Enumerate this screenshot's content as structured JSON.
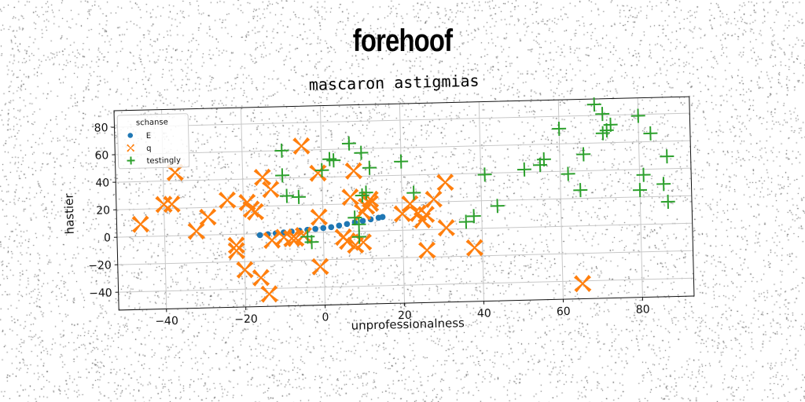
{
  "heading": "forehoof",
  "chart_data": {
    "type": "scatter",
    "title": "mascaron astigmias",
    "xlabel": "unprofessionalness",
    "ylabel": "hastier",
    "xlim": [
      -52,
      93
    ],
    "ylim": [
      -53,
      92
    ],
    "xticks": [
      -40,
      -20,
      0,
      20,
      40,
      60,
      80
    ],
    "yticks": [
      -40,
      -20,
      0,
      20,
      40,
      60,
      80
    ],
    "grid": true,
    "legend": {
      "title": "schanse",
      "placement": "top-left"
    },
    "series": [
      {
        "name": "E",
        "marker": "circle",
        "color": "#1f77b4",
        "points": [
          [
            -16,
            -1
          ],
          [
            -14,
            -0.5
          ],
          [
            -12,
            0
          ],
          [
            -10,
            0.5
          ],
          [
            -8,
            1
          ],
          [
            -6,
            1.5
          ],
          [
            -4,
            2
          ],
          [
            -2,
            2.5
          ],
          [
            0,
            3
          ],
          [
            2,
            3.5
          ],
          [
            4,
            4.5
          ],
          [
            6,
            5.5
          ],
          [
            8,
            6.5
          ],
          [
            10,
            7.5
          ],
          [
            12,
            8.5
          ],
          [
            14,
            9.5
          ],
          [
            15,
            10
          ]
        ]
      },
      {
        "name": "q",
        "marker": "x",
        "color": "#ff7f0e",
        "points": [
          [
            -46,
            9
          ],
          [
            -37,
            46
          ],
          [
            -38,
            23
          ],
          [
            -40,
            23
          ],
          [
            -32,
            3
          ],
          [
            -29,
            13
          ],
          [
            -24,
            25
          ],
          [
            -22,
            -12
          ],
          [
            -22,
            -8
          ],
          [
            -20,
            -26
          ],
          [
            -19,
            23
          ],
          [
            -18,
            18
          ],
          [
            -17,
            16
          ],
          [
            -16,
            -32
          ],
          [
            -15,
            41
          ],
          [
            -13,
            32
          ],
          [
            -14,
            -44
          ],
          [
            -13,
            -5
          ],
          [
            -10,
            -3
          ],
          [
            -8,
            -4
          ],
          [
            -7,
            -4
          ],
          [
            -5,
            63
          ],
          [
            -5,
            -2
          ],
          [
            -1,
            11
          ],
          [
            -1,
            43
          ],
          [
            -1,
            -25
          ],
          [
            5,
            -4
          ],
          [
            6,
            -7
          ],
          [
            7,
            25
          ],
          [
            8,
            44
          ],
          [
            8,
            -10
          ],
          [
            10,
            -8
          ],
          [
            10,
            14
          ],
          [
            11,
            18
          ],
          [
            12,
            20
          ],
          [
            12,
            23
          ],
          [
            20,
            12
          ],
          [
            22,
            19
          ],
          [
            24,
            12
          ],
          [
            25,
            7
          ],
          [
            26,
            11
          ],
          [
            26,
            -15
          ],
          [
            28,
            22
          ],
          [
            31,
            34
          ],
          [
            31,
            1
          ],
          [
            38,
            -14
          ],
          [
            65,
            -42
          ]
        ]
      },
      {
        "name": "testingly",
        "marker": "plus",
        "color": "#2ca02c",
        "points": [
          [
            -10,
            60
          ],
          [
            -10,
            42
          ],
          [
            -9,
            27
          ],
          [
            -6,
            26
          ],
          [
            -3,
            -7
          ],
          [
            -4,
            -3
          ],
          [
            0,
            45
          ],
          [
            2,
            53
          ],
          [
            3,
            52
          ],
          [
            7,
            64
          ],
          [
            8,
            10
          ],
          [
            9,
            -4
          ],
          [
            9,
            5
          ],
          [
            10,
            57
          ],
          [
            10,
            26
          ],
          [
            11,
            28
          ],
          [
            12,
            46
          ],
          [
            20,
            50
          ],
          [
            23,
            27
          ],
          [
            36,
            5
          ],
          [
            38,
            9
          ],
          [
            41,
            39
          ],
          [
            44,
            16
          ],
          [
            51,
            42
          ],
          [
            55,
            45
          ],
          [
            56,
            49
          ],
          [
            60,
            71
          ],
          [
            62,
            38
          ],
          [
            65,
            26
          ],
          [
            66,
            52
          ],
          [
            69,
            88
          ],
          [
            71,
            81
          ],
          [
            71,
            67
          ],
          [
            72,
            69
          ],
          [
            73,
            73
          ],
          [
            80,
            79
          ],
          [
            80,
            25
          ],
          [
            81,
            36
          ],
          [
            83,
            66
          ],
          [
            86,
            29
          ],
          [
            87,
            49
          ],
          [
            87,
            16
          ]
        ]
      }
    ]
  }
}
